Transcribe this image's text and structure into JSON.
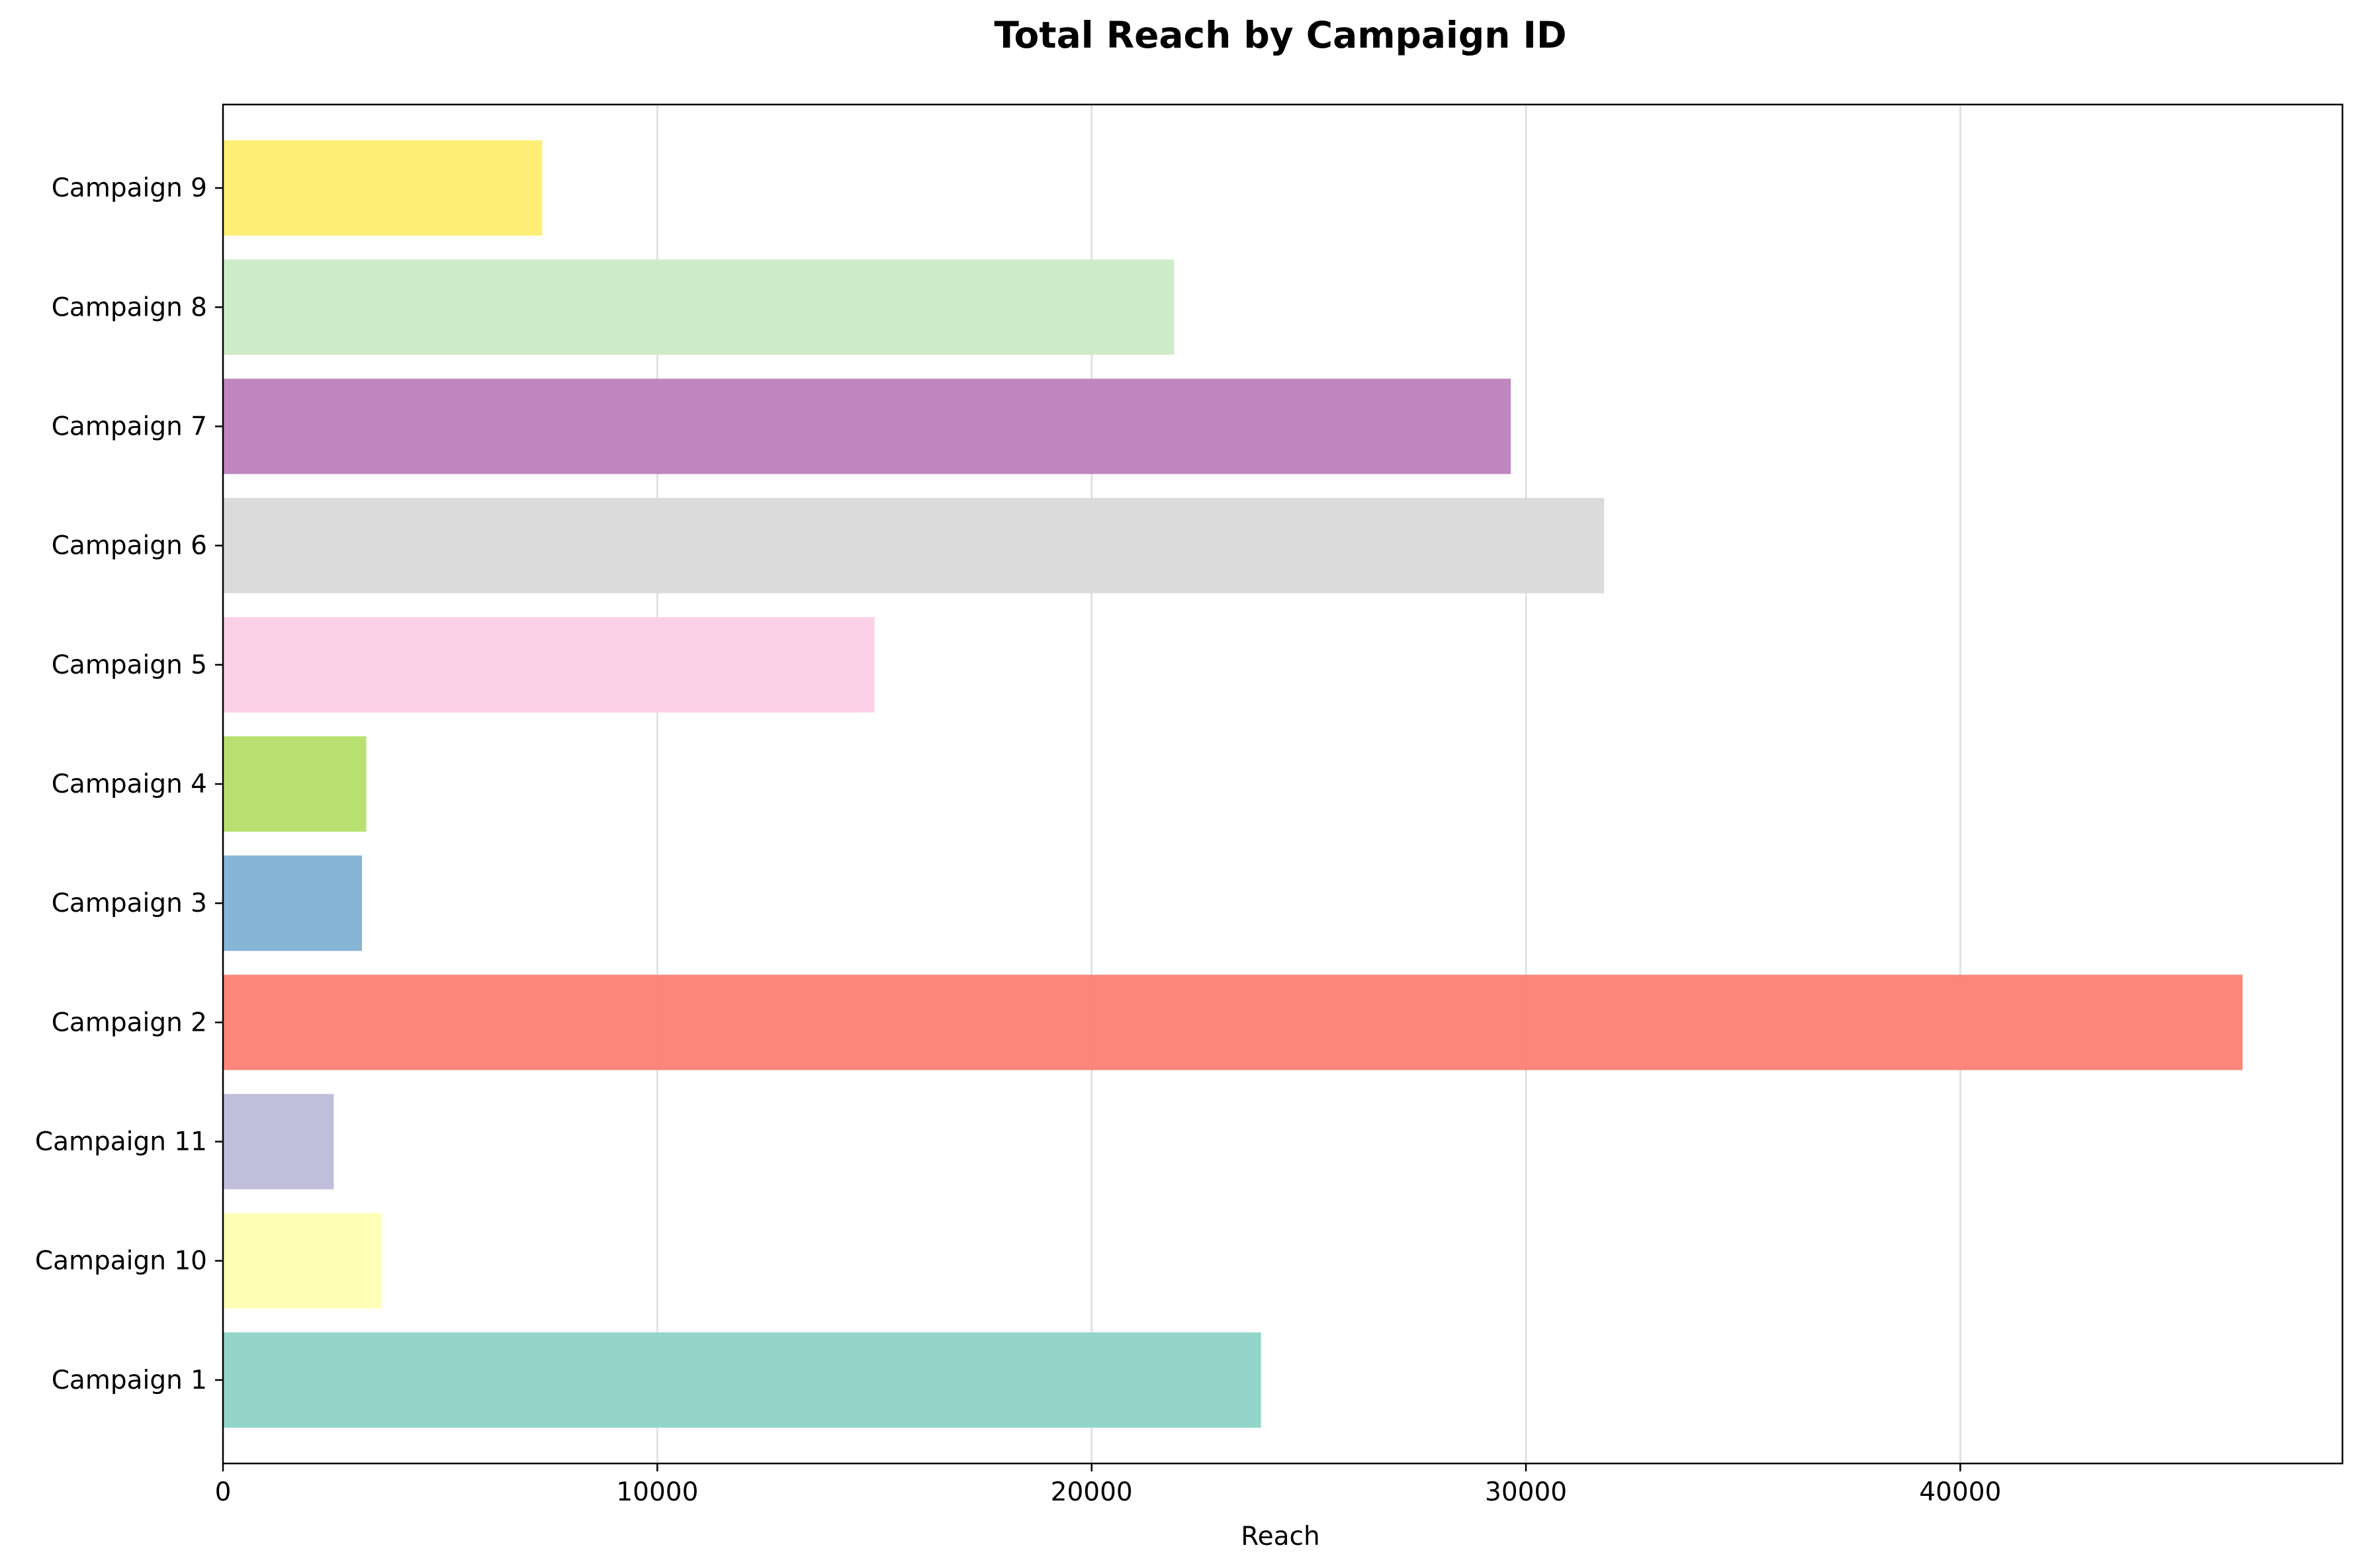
{
  "chart_data": {
    "type": "bar",
    "orientation": "horizontal",
    "title": "Total Reach by Campaign ID",
    "xlabel": "Reach",
    "ylabel": "",
    "xlim": [
      0,
      48800
    ],
    "xticks": [
      0,
      10000,
      20000,
      30000,
      40000
    ],
    "grid": "vertical",
    "categories": [
      "Campaign 1",
      "Campaign 10",
      "Campaign 11",
      "Campaign 2",
      "Campaign 3",
      "Campaign 4",
      "Campaign 5",
      "Campaign 6",
      "Campaign 7",
      "Campaign 8",
      "Campaign 9"
    ],
    "values": [
      23900,
      3650,
      2550,
      46500,
      3200,
      3300,
      15000,
      31800,
      29650,
      21900,
      7350
    ],
    "colors": [
      "#8dd3c7",
      "#ffffb3",
      "#bebada",
      "#fb8072",
      "#80b1d3",
      "#b3de69",
      "#fccde5",
      "#d9d9d9",
      "#bc80bd",
      "#ccebc5",
      "#ffed6f"
    ]
  }
}
